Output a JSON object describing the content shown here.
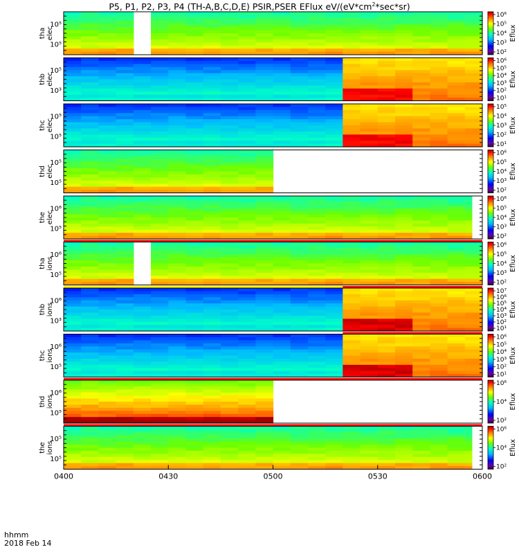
{
  "title": {
    "prefix": "P5, P1, P2, P3, P4 (TH-A,B,C,D,E) PSIR,PSER EFlux eV/(eV*cm",
    "sup": "2",
    "suffix": "*sec*sr)"
  },
  "footer": {
    "time_label": "hhmm",
    "date_label": "2018 Feb 14"
  },
  "chart_data": {
    "type": "heatmap",
    "time_range": [
      "0400",
      "0600"
    ],
    "x_ticks": [
      "0400",
      "0430",
      "0500",
      "0530",
      "0600"
    ],
    "colorbar_label": "Eflux",
    "panels": [
      {
        "name": "tha elec",
        "probe": "tha",
        "species": "elec",
        "y_ticks": [
          "10⁵",
          "10⁵"
        ],
        "colorbar_ticks": [
          "10⁶",
          "10⁵",
          "10⁴",
          "10³",
          "10²"
        ],
        "data_gaps": [
          [
            "0417",
            "0424"
          ]
        ],
        "data_end": "0600",
        "regime_change": null,
        "flag_bar": null
      },
      {
        "name": "thb elec",
        "probe": "thb",
        "species": "elec",
        "y_ticks": [
          "10⁵",
          "10³"
        ],
        "colorbar_ticks": [
          "10⁶",
          "10⁵",
          "10⁴",
          "10³",
          "10²",
          "10¹"
        ],
        "data_gaps": [],
        "data_end": "0600",
        "regime_change": "0520",
        "flag_bar": null
      },
      {
        "name": "thc elec",
        "probe": "thc",
        "species": "elec",
        "y_ticks": [
          "10⁵",
          "10⁵"
        ],
        "colorbar_ticks": [
          "10⁵",
          "10⁴",
          "10³",
          "10²",
          "10¹"
        ],
        "data_gaps": [],
        "data_end": "0600",
        "regime_change": "0520",
        "flag_bar": null
      },
      {
        "name": "thd elec",
        "probe": "thd",
        "species": "elec",
        "y_ticks": [
          "10⁵",
          "10⁵"
        ],
        "colorbar_ticks": [
          "10⁶",
          "10⁵",
          "10⁴",
          "10³",
          "10²"
        ],
        "data_gaps": [],
        "data_end": "0500",
        "regime_change": null,
        "flag_bar": null
      },
      {
        "name": "the elec",
        "probe": "the",
        "species": "elec",
        "y_ticks": [
          "10⁶",
          "10⁵"
        ],
        "colorbar_ticks": [
          "10⁶",
          "10⁵",
          "10⁴",
          "10³",
          "10²"
        ],
        "data_gaps": [],
        "data_end": "0557",
        "regime_change": null,
        "flag_bar": "full"
      },
      {
        "name": "tha ions",
        "probe": "tha",
        "species": "ions",
        "y_ticks": [
          "10⁶",
          "10⁵"
        ],
        "colorbar_ticks": [
          "10⁶",
          "10⁵",
          "10⁴",
          "10³",
          "10²"
        ],
        "data_gaps": [
          [
            "0417",
            "0424"
          ]
        ],
        "data_end": "0600",
        "regime_change": null,
        "flag_bar": "split-0520"
      },
      {
        "name": "thb ions",
        "probe": "thb",
        "species": "ions",
        "y_ticks": [
          "10⁶",
          "10³"
        ],
        "colorbar_ticks": [
          "10⁷",
          "10⁶",
          "10⁵",
          "10⁴",
          "10³",
          "10²",
          "10¹"
        ],
        "data_gaps": [],
        "data_end": "0600",
        "regime_change": "0520",
        "flag_bar": "half-0520"
      },
      {
        "name": "thc ions",
        "probe": "thc",
        "species": "ions",
        "y_ticks": [
          "10⁶",
          "10⁵"
        ],
        "colorbar_ticks": [
          "10⁶",
          "10⁵",
          "10⁴",
          "10³",
          "10²",
          "10¹"
        ],
        "data_gaps": [],
        "data_end": "0600",
        "regime_change": "0520",
        "flag_bar": "full"
      },
      {
        "name": "thd ions",
        "probe": "thd",
        "species": "ions",
        "y_ticks": [
          "10⁶",
          "10⁵"
        ],
        "colorbar_ticks": [
          "10⁶",
          "10⁴",
          "10²"
        ],
        "data_gaps": [],
        "data_end": "0500",
        "regime_change": null,
        "flag_bar": "full"
      },
      {
        "name": "the ions",
        "probe": "the",
        "species": "ions",
        "y_ticks": [
          "10⁵",
          "10⁵"
        ],
        "colorbar_ticks": [
          "10⁶",
          "10⁴",
          "10²"
        ],
        "data_gaps": [],
        "data_end": "0557",
        "regime_change": null,
        "flag_bar": null
      }
    ]
  }
}
